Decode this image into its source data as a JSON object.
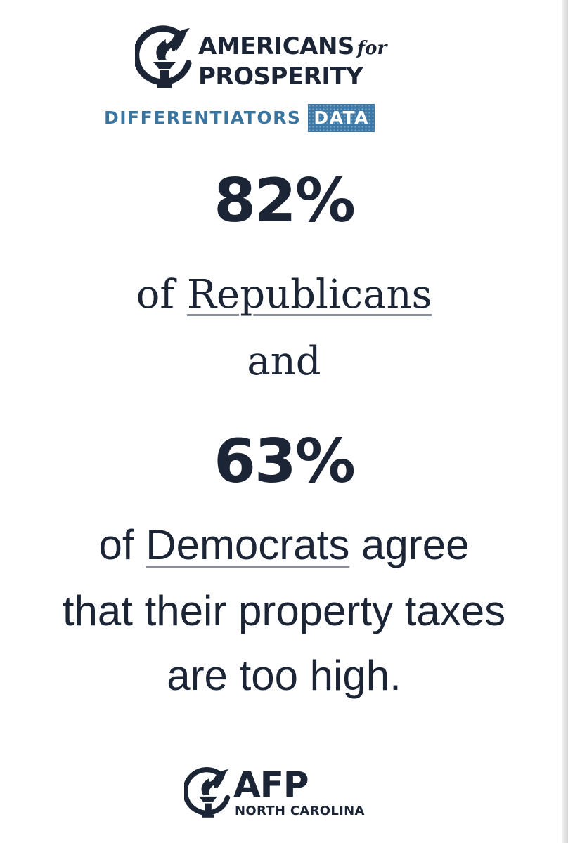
{
  "header": {
    "brand_line1": "AMERICANS",
    "brand_for": "for",
    "brand_line2": "PROSPERITY",
    "subtitle_word": "DIFFERENTIATORS",
    "subtitle_badge": "DATA",
    "logo_icon": "torch-icon",
    "accent_color": "#3a75a0"
  },
  "main": {
    "stat_1": "82%",
    "line_1_prefix": "of ",
    "line_1_group": "Republicans",
    "connector": "and",
    "stat_2": "63%",
    "line_2_prefix": "of ",
    "line_2_group": "Democrats",
    "line_2_suffix": " agree",
    "line_3": "that their property taxes",
    "line_4": "are too high."
  },
  "footer": {
    "brand": "AFP",
    "region": "NORTH CAROLINA",
    "logo_icon": "torch-icon"
  },
  "colors": {
    "text": "#1b2535",
    "underline": "#8a8f98"
  }
}
